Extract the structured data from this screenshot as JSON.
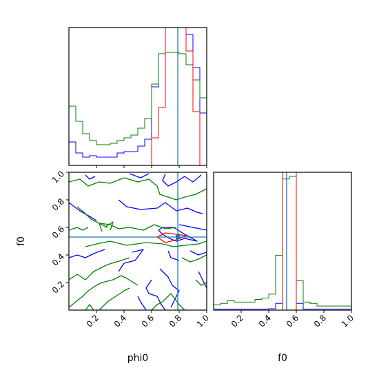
{
  "chart_data": [
    {
      "type": "histogram",
      "panel": "phi0-marginal",
      "x": [
        0.0,
        0.05,
        0.1,
        0.15,
        0.2,
        0.25,
        0.3,
        0.35,
        0.4,
        0.45,
        0.5,
        0.55,
        0.6,
        0.65,
        0.7,
        0.75,
        0.8,
        0.85,
        0.9,
        0.95,
        1.0
      ],
      "xlim": [
        0,
        1
      ],
      "series": [
        {
          "color": "#0000ff",
          "values": [
            0.17,
            0.09,
            0.06,
            0.07,
            0.06,
            0.06,
            0.06,
            0.09,
            0.1,
            0.1,
            0.14,
            0.19,
            0.57,
            0.81,
            1.2,
            1.2,
            1.2,
            0.95,
            0.71,
            0.38
          ]
        },
        {
          "color": "#008000",
          "values": [
            0.43,
            0.32,
            0.23,
            0.18,
            0.15,
            0.15,
            0.16,
            0.18,
            0.2,
            0.22,
            0.27,
            0.34,
            0.59,
            0.81,
            0.82,
            0.82,
            0.81,
            0.73,
            0.62,
            0.49
          ]
        },
        {
          "color": "#ff0000",
          "values": [
            0,
            0,
            0,
            0,
            0,
            0,
            0,
            0,
            0,
            0,
            0,
            0,
            0.2,
            0.42,
            1.2,
            1.2,
            1.2,
            0.83,
            0.39,
            0
          ]
        }
      ],
      "truth_value": 0.79,
      "truth_color": "#1f77b4"
    },
    {
      "type": "contour",
      "panel": "phi0-f0-joint",
      "xlim": [
        0,
        1
      ],
      "ylim": [
        0,
        1
      ],
      "xlabel": "phi0",
      "ylabel": "f0",
      "x_ticks": [
        "0.2",
        "0.4",
        "0.6",
        "0.8",
        "1.0"
      ],
      "y_ticks": [
        "0.2",
        "0.4",
        "0.6",
        "0.8",
        "1.0"
      ],
      "truth": {
        "x": 0.79,
        "y": 0.53
      },
      "series": [
        {
          "color": "#0000ff",
          "paths": [
            [
              [
                0.12,
                0.98
              ],
              [
                0.15,
                0.95
              ],
              [
                0.19,
                0.97
              ]
            ],
            [
              [
                0.7,
                0.99
              ],
              [
                0.68,
                0.94
              ],
              [
                0.72,
                0.9
              ],
              [
                0.78,
                0.93
              ],
              [
                0.84,
                0.97
              ],
              [
                0.9,
                0.93
              ],
              [
                0.96,
                0.98
              ]
            ],
            [
              [
                0.44,
                0.99
              ],
              [
                0.52,
                0.96
              ],
              [
                0.58,
                0.99
              ]
            ],
            [
              [
                0.0,
                0.78
              ],
              [
                0.08,
                0.72
              ],
              [
                0.15,
                0.68
              ],
              [
                0.2,
                0.65
              ]
            ],
            [
              [
                0.36,
                0.8
              ],
              [
                0.42,
                0.75
              ],
              [
                0.52,
                0.73
              ],
              [
                0.64,
                0.74
              ],
              [
                0.7,
                0.78
              ],
              [
                0.78,
                0.72
              ],
              [
                0.86,
                0.74
              ],
              [
                0.93,
                0.71
              ],
              [
                0.97,
                0.7
              ]
            ],
            [
              [
                0.8,
                0.62
              ],
              [
                0.9,
                0.6
              ],
              [
                1.0,
                0.58
              ]
            ],
            [
              [
                0.65,
                0.58
              ],
              [
                0.68,
                0.55
              ],
              [
                0.73,
                0.52
              ],
              [
                0.78,
                0.5
              ],
              [
                0.84,
                0.52
              ],
              [
                0.93,
                0.5
              ],
              [
                0.84,
                0.55
              ],
              [
                0.76,
                0.6
              ],
              [
                0.68,
                0.6
              ],
              [
                0.65,
                0.58
              ]
            ],
            [
              [
                0.0,
                0.38
              ],
              [
                0.06,
                0.4
              ],
              [
                0.12,
                0.38
              ],
              [
                0.18,
                0.41
              ],
              [
                0.26,
                0.44
              ]
            ],
            [
              [
                0.46,
                0.42
              ],
              [
                0.54,
                0.44
              ],
              [
                0.48,
                0.36
              ],
              [
                0.4,
                0.34
              ],
              [
                0.36,
                0.28
              ]
            ],
            [
              [
                0.72,
                0.43
              ],
              [
                0.74,
                0.38
              ],
              [
                0.8,
                0.36
              ]
            ],
            [
              [
                0.88,
                0.43
              ],
              [
                0.94,
                0.4
              ],
              [
                1.0,
                0.42
              ]
            ],
            [
              [
                0.5,
                0.1
              ],
              [
                0.52,
                0.06
              ],
              [
                0.56,
                0.0
              ]
            ],
            [
              [
                0.6,
                0.22
              ],
              [
                0.56,
                0.16
              ],
              [
                0.58,
                0.12
              ],
              [
                0.64,
                0.1
              ],
              [
                0.67,
                0.04
              ],
              [
                0.7,
                0.0
              ]
            ],
            [
              [
                0.66,
                0.3
              ],
              [
                0.72,
                0.24
              ],
              [
                0.75,
                0.18
              ],
              [
                0.8,
                0.14
              ],
              [
                0.77,
                0.08
              ],
              [
                0.74,
                0.02
              ]
            ],
            [
              [
                0.94,
                0.28
              ],
              [
                0.97,
                0.22
              ],
              [
                1.0,
                0.16
              ]
            ]
          ]
        },
        {
          "color": "#008000",
          "paths": [
            [
              [
                0.0,
                0.93
              ],
              [
                0.08,
                0.95
              ],
              [
                0.14,
                0.9
              ],
              [
                0.22,
                0.93
              ],
              [
                0.3,
                0.92
              ],
              [
                0.4,
                0.96
              ],
              [
                0.5,
                0.93
              ],
              [
                0.58,
                0.95
              ],
              [
                0.64,
                0.9
              ],
              [
                0.66,
                0.84
              ],
              [
                0.72,
                0.82
              ],
              [
                0.78,
                0.8
              ],
              [
                0.84,
                0.82
              ],
              [
                0.92,
                0.84
              ],
              [
                1.0,
                0.88
              ]
            ],
            [
              [
                0.06,
                0.75
              ],
              [
                0.12,
                0.7
              ],
              [
                0.16,
                0.66
              ],
              [
                0.22,
                0.63
              ],
              [
                0.3,
                0.62
              ],
              [
                0.36,
                0.59
              ],
              [
                0.44,
                0.6
              ],
              [
                0.54,
                0.58
              ],
              [
                0.62,
                0.62
              ],
              [
                0.7,
                0.59
              ],
              [
                0.78,
                0.6
              ]
            ],
            [
              [
                0.0,
                0.58
              ],
              [
                0.06,
                0.6
              ],
              [
                0.1,
                0.58
              ],
              [
                0.14,
                0.6
              ]
            ],
            [
              [
                0.24,
                0.57
              ],
              [
                0.22,
                0.63
              ],
              [
                0.28,
                0.6
              ]
            ],
            [
              [
                0.12,
                0.46
              ],
              [
                0.2,
                0.48
              ],
              [
                0.3,
                0.5
              ],
              [
                0.42,
                0.47
              ],
              [
                0.56,
                0.49
              ],
              [
                0.68,
                0.48
              ],
              [
                0.76,
                0.46
              ],
              [
                0.84,
                0.47
              ],
              [
                0.94,
                0.48
              ],
              [
                1.0,
                0.5
              ]
            ],
            [
              [
                0.0,
                0.22
              ],
              [
                0.06,
                0.26
              ],
              [
                0.12,
                0.22
              ],
              [
                0.18,
                0.28
              ],
              [
                0.28,
                0.33
              ],
              [
                0.38,
                0.36
              ],
              [
                0.44,
                0.38
              ]
            ],
            [
              [
                0.82,
                0.38
              ],
              [
                0.88,
                0.35
              ],
              [
                0.94,
                0.37
              ],
              [
                1.0,
                0.4
              ]
            ],
            [
              [
                0.0,
                0.02
              ],
              [
                0.05,
                0.06
              ],
              [
                0.1,
                0.1
              ],
              [
                0.14,
                0.14
              ],
              [
                0.2,
                0.18
              ],
              [
                0.24,
                0.2
              ],
              [
                0.32,
                0.22
              ],
              [
                0.38,
                0.25
              ],
              [
                0.42,
                0.23
              ],
              [
                0.5,
                0.18
              ]
            ],
            [
              [
                0.22,
                0.0
              ],
              [
                0.28,
                0.06
              ],
              [
                0.34,
                0.1
              ],
              [
                0.4,
                0.14
              ],
              [
                0.44,
                0.16
              ]
            ],
            [
              [
                0.12,
                0.0
              ],
              [
                0.15,
                0.04
              ],
              [
                0.18,
                0.0
              ]
            ],
            [
              [
                0.6,
                0.0
              ],
              [
                0.64,
                0.04
              ],
              [
                0.68,
                0.06
              ],
              [
                0.74,
                0.12
              ],
              [
                0.8,
                0.04
              ],
              [
                0.84,
                0.0
              ]
            ],
            [
              [
                0.92,
                0.22
              ],
              [
                0.96,
                0.18
              ],
              [
                1.0,
                0.2
              ]
            ],
            [
              [
                0.26,
                0.6
              ],
              [
                0.32,
                0.64
              ],
              [
                0.3,
                0.58
              ]
            ]
          ]
        },
        {
          "color": "#ff0000",
          "paths": [
            [
              [
                0.64,
                0.53
              ],
              [
                0.7,
                0.56
              ],
              [
                0.78,
                0.55
              ],
              [
                0.85,
                0.54
              ],
              [
                0.78,
                0.51
              ],
              [
                0.7,
                0.49
              ],
              [
                0.64,
                0.53
              ]
            ]
          ]
        }
      ]
    },
    {
      "type": "histogram",
      "panel": "f0-marginal",
      "x": [
        0.0,
        0.05,
        0.1,
        0.15,
        0.2,
        0.25,
        0.3,
        0.35,
        0.4,
        0.45,
        0.5,
        0.55,
        0.6,
        0.65,
        0.7,
        0.75,
        0.8,
        0.85,
        0.9,
        0.95,
        1.0
      ],
      "xlim": [
        0,
        1
      ],
      "xlabel": "f0",
      "x_ticks": [
        "0.2",
        "0.4",
        "0.6",
        "0.8",
        "1.0"
      ],
      "series": [
        {
          "color": "#0000ff",
          "values": [
            0.008,
            0.008,
            0.008,
            0.008,
            0.008,
            0.008,
            0.008,
            0.008,
            0.01,
            0.05,
            1.2,
            1.2,
            0.05,
            0.008,
            0.008,
            0.008,
            0.008,
            0.008,
            0.008,
            0.008
          ]
        },
        {
          "color": "#008000",
          "values": [
            0.04,
            0.05,
            0.07,
            0.06,
            0.06,
            0.06,
            0.08,
            0.09,
            0.12,
            0.41,
            0.98,
            1.0,
            0.22,
            0.06,
            0.05,
            0.03,
            0.03,
            0.03,
            0.03,
            0.03
          ]
        },
        {
          "color": "#ff0000",
          "values": [
            0,
            0,
            0,
            0,
            0,
            0,
            0,
            0,
            0,
            0,
            1.2,
            1.2,
            0,
            0,
            0,
            0,
            0,
            0,
            0,
            0
          ]
        }
      ],
      "truth_value": 0.53,
      "truth_color": "#1f77b4"
    }
  ]
}
